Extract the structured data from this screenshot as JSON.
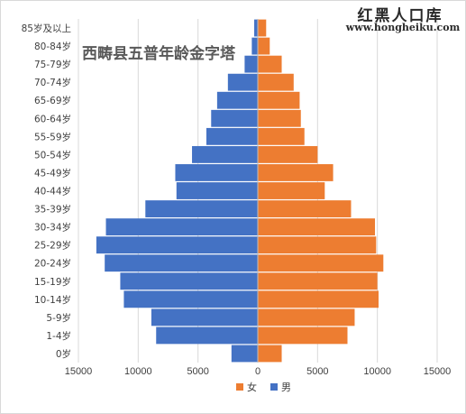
{
  "watermark": {
    "title": "红黑人口库",
    "url": "www.hongheiku.com"
  },
  "chart_data": {
    "type": "bar",
    "orientation": "horizontal",
    "title": "西畴县五普年龄金字塔",
    "categories": [
      "0岁",
      "1-4岁",
      "5-9岁",
      "10-14岁",
      "15-19岁",
      "20-24岁",
      "25-29岁",
      "30-34岁",
      "35-39岁",
      "40-44岁",
      "45-49岁",
      "50-54岁",
      "55-59岁",
      "60-64岁",
      "65-69岁",
      "70-74岁",
      "75-79岁",
      "80-84岁",
      "85岁及以上"
    ],
    "series": [
      {
        "name": "女",
        "color": "#ED7D31",
        "values": [
          2000,
          7500,
          8100,
          10100,
          10000,
          10500,
          9900,
          9800,
          7800,
          5600,
          6300,
          5000,
          3900,
          3600,
          3500,
          3000,
          2000,
          1000,
          700
        ]
      },
      {
        "name": "男",
        "color": "#4472C4",
        "values": [
          -2200,
          -8500,
          -8900,
          -11200,
          -11500,
          -12800,
          -13500,
          -12700,
          -9400,
          -6800,
          -6900,
          -5500,
          -4300,
          -3900,
          -3400,
          -2500,
          -1100,
          -500,
          -300
        ]
      }
    ],
    "xlim": [
      -15000,
      15000
    ],
    "xticks": [
      -15000,
      -10000,
      -5000,
      0,
      5000,
      10000,
      15000
    ],
    "xtick_labels": [
      "15000",
      "10000",
      "5000",
      "0",
      "5000",
      "10000",
      "15000"
    ],
    "grid": true,
    "legend": "bottom"
  }
}
